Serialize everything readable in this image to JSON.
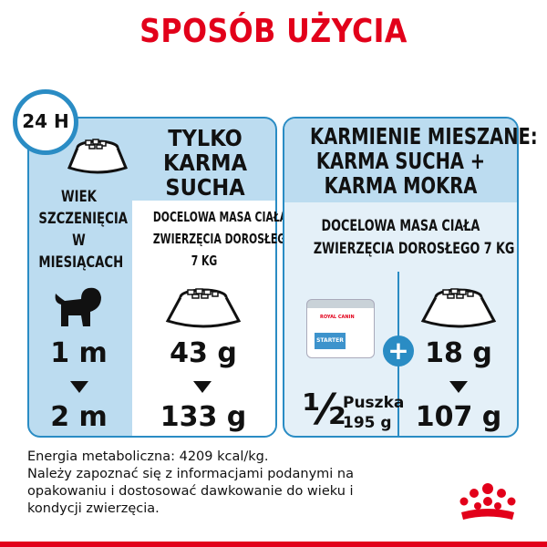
{
  "title": "SPOSÓB UŻYCIA",
  "clock_label": "24 H",
  "left_panel": {
    "header": [
      "TYLKO",
      "KARMA",
      "SUCHA"
    ],
    "age_header": [
      "WIEK",
      "SZCZENIĘCIA",
      "W",
      "MIESIĄCACH"
    ],
    "target": [
      "DOCELOWA MASA CIAŁA",
      "ZWIERZĘCIA DOROSŁEGO",
      "7 KG"
    ],
    "age_from": "1 m",
    "age_to": "2 m",
    "dose_from": "43 g",
    "dose_to": "133 g"
  },
  "right_panel": {
    "header": [
      "KARMIENIE MIESZANE:",
      "KARMA SUCHA +",
      "KARMA MOKRA"
    ],
    "target": [
      "DOCELOWA MASA CIAŁA",
      "ZWIERZĘCIA DOROSŁEGO 7 KG"
    ],
    "can_fraction": "½",
    "can_unit": "Puszka",
    "can_weight": "195 g",
    "can_label": "STARTER",
    "can_brand": "ROYAL CANIN",
    "dose_from": "18 g",
    "dose_to": "107 g"
  },
  "footer": [
    "Energia metaboliczna: 4209 kcal/kg.",
    "Należy zapoznać się z informacjami podanymi na",
    "opakowaniu i dostosować dawkowanie do wieku i",
    "kondycji zwierzęcia."
  ],
  "colors": {
    "title": "#e2001a",
    "border": "#2a8cc4",
    "header_fill": "#bcdcf0"
  }
}
